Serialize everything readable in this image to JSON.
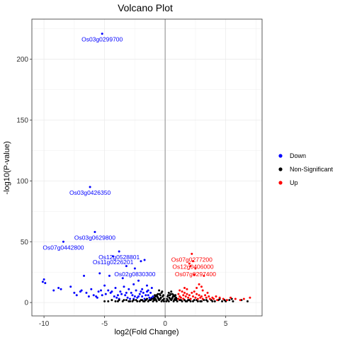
{
  "chart_data": {
    "type": "scatter",
    "title": "Volcano Plot",
    "xlabel": "log2(Fold Change)",
    "ylabel": "-log10(P-value)",
    "xlim": [
      -11,
      8
    ],
    "ylim": [
      -11,
      233
    ],
    "x_ticks": [
      -10,
      -5,
      0,
      5
    ],
    "y_ticks": [
      0,
      50,
      100,
      150,
      200
    ],
    "grid": true,
    "vline": 0,
    "legend_position": "right",
    "colors": {
      "Down": "#0000ff",
      "Non-Significant": "#000000",
      "Up": "#ff0000"
    },
    "series": [
      {
        "name": "Down",
        "color": "#0000ff",
        "points": [
          [
            -5.2,
            221
          ],
          [
            -6.2,
            95
          ],
          [
            -5.8,
            58
          ],
          [
            -8.4,
            50
          ],
          [
            -3.8,
            42
          ],
          [
            -4.3,
            38
          ],
          [
            -1.7,
            35
          ],
          [
            -2.0,
            34
          ],
          [
            -3.2,
            30
          ],
          [
            -2.5,
            28
          ],
          [
            -10.0,
            19
          ],
          [
            -10.1,
            17
          ],
          [
            -9.9,
            16
          ],
          [
            -6.7,
            22
          ],
          [
            -5.4,
            24
          ],
          [
            -4.6,
            22
          ],
          [
            -3.5,
            20
          ],
          [
            -7.8,
            13
          ],
          [
            -8.6,
            11
          ],
          [
            -8.8,
            12
          ],
          [
            -9.2,
            10
          ],
          [
            -7.0,
            9
          ],
          [
            -6.5,
            8
          ],
          [
            -5.9,
            6
          ],
          [
            -5.7,
            5
          ],
          [
            -5.6,
            4
          ],
          [
            -5.2,
            6
          ],
          [
            -4.9,
            7
          ],
          [
            -4.5,
            8
          ],
          [
            -4.2,
            5
          ],
          [
            -4.0,
            4
          ],
          [
            -3.8,
            3
          ],
          [
            -3.6,
            7
          ],
          [
            -3.3,
            6
          ],
          [
            -3.1,
            4
          ],
          [
            -2.9,
            3
          ],
          [
            -2.7,
            6
          ],
          [
            -2.5,
            5
          ],
          [
            -2.3,
            4
          ],
          [
            -2.1,
            7
          ],
          [
            -1.9,
            5
          ],
          [
            -1.7,
            3
          ],
          [
            -1.5,
            9
          ],
          [
            -1.4,
            6
          ],
          [
            -1.3,
            4
          ],
          [
            -1.2,
            3
          ],
          [
            -1.1,
            12
          ],
          [
            -1.0,
            5
          ],
          [
            -1.5,
            14
          ],
          [
            -2.2,
            18
          ],
          [
            -2.6,
            15
          ],
          [
            -3.0,
            11
          ],
          [
            -3.4,
            13
          ],
          [
            -4.1,
            12
          ],
          [
            -4.7,
            10
          ],
          [
            -5.0,
            14
          ],
          [
            -5.5,
            9
          ],
          [
            -6.1,
            11
          ],
          [
            -6.9,
            10
          ],
          [
            -7.5,
            8
          ],
          [
            -7.3,
            6
          ],
          [
            -6.3,
            5
          ],
          [
            -5.3,
            10
          ],
          [
            -4.4,
            9
          ],
          [
            -3.7,
            9
          ],
          [
            -2.8,
            8
          ],
          [
            -2.4,
            10
          ],
          [
            -2.0,
            9
          ],
          [
            -1.8,
            8
          ],
          [
            -1.6,
            6
          ],
          [
            -1.2,
            8
          ],
          [
            -1.1,
            4
          ],
          [
            -3.9,
            6
          ],
          [
            -3.2,
            8
          ],
          [
            -2.6,
            3
          ],
          [
            -2.2,
            5
          ],
          [
            -1.9,
            11
          ],
          [
            -1.4,
            10
          ]
        ]
      },
      {
        "name": "Non-Significant",
        "color": "#000000",
        "points": [
          [
            -0.1,
            1
          ],
          [
            -0.2,
            2
          ],
          [
            -0.3,
            1
          ],
          [
            -0.4,
            3
          ],
          [
            -0.5,
            2
          ],
          [
            -0.6,
            4
          ],
          [
            -0.7,
            1
          ],
          [
            -0.8,
            3
          ],
          [
            -0.9,
            2
          ],
          [
            -1.0,
            1
          ],
          [
            -1.2,
            2
          ],
          [
            -1.4,
            1
          ],
          [
            -1.6,
            2
          ],
          [
            -1.8,
            1
          ],
          [
            -2.0,
            2
          ],
          [
            -2.3,
            1
          ],
          [
            -2.6,
            2
          ],
          [
            -2.9,
            1
          ],
          [
            -3.2,
            2
          ],
          [
            -3.5,
            1
          ],
          [
            -3.8,
            2
          ],
          [
            -4.1,
            1
          ],
          [
            -4.4,
            2
          ],
          [
            -4.7,
            1
          ],
          [
            -5.0,
            1
          ],
          [
            -0.2,
            5
          ],
          [
            -0.4,
            6
          ],
          [
            -0.6,
            7
          ],
          [
            -0.3,
            8
          ],
          [
            -0.5,
            10
          ],
          [
            -0.7,
            6
          ],
          [
            -0.8,
            5
          ],
          [
            -0.9,
            4
          ],
          [
            -0.1,
            3
          ],
          [
            -0.15,
            6
          ],
          [
            -0.25,
            9
          ],
          [
            -0.35,
            4
          ],
          [
            -0.45,
            7
          ],
          [
            -0.55,
            3
          ],
          [
            -0.65,
            5
          ],
          [
            -0.75,
            2
          ],
          [
            -0.85,
            6
          ],
          [
            -0.95,
            3
          ],
          [
            -1.1,
            3
          ],
          [
            -1.3,
            2
          ],
          [
            -1.5,
            3
          ],
          [
            -1.7,
            1
          ],
          [
            -1.9,
            2
          ],
          [
            -2.1,
            1
          ],
          [
            -2.4,
            2
          ],
          [
            -2.7,
            1
          ],
          [
            -3.0,
            1
          ],
          [
            -3.4,
            2
          ],
          [
            -3.9,
            1
          ],
          [
            0.1,
            1
          ],
          [
            0.2,
            2
          ],
          [
            0.3,
            1
          ],
          [
            0.4,
            3
          ],
          [
            0.5,
            2
          ],
          [
            0.6,
            4
          ],
          [
            0.7,
            1
          ],
          [
            0.8,
            3
          ],
          [
            0.9,
            2
          ],
          [
            1.0,
            1
          ],
          [
            1.2,
            2
          ],
          [
            1.4,
            1
          ],
          [
            1.6,
            2
          ],
          [
            1.8,
            1
          ],
          [
            2.0,
            2
          ],
          [
            2.3,
            1
          ],
          [
            2.6,
            2
          ],
          [
            2.9,
            1
          ],
          [
            3.2,
            2
          ],
          [
            3.5,
            1
          ],
          [
            3.8,
            2
          ],
          [
            4.1,
            1
          ],
          [
            4.4,
            2
          ],
          [
            4.7,
            1
          ],
          [
            5.0,
            1
          ],
          [
            5.3,
            2
          ],
          [
            5.6,
            1
          ],
          [
            0.2,
            5
          ],
          [
            0.4,
            6
          ],
          [
            0.6,
            7
          ],
          [
            0.3,
            8
          ],
          [
            0.5,
            9
          ],
          [
            0.7,
            6
          ],
          [
            0.8,
            5
          ],
          [
            0.9,
            4
          ],
          [
            0.15,
            3
          ],
          [
            0.25,
            6
          ],
          [
            0.35,
            4
          ],
          [
            0.45,
            7
          ],
          [
            0.55,
            3
          ],
          [
            0.65,
            5
          ],
          [
            0.75,
            2
          ],
          [
            0.85,
            6
          ],
          [
            0.95,
            3
          ],
          [
            1.1,
            3
          ],
          [
            1.3,
            2
          ],
          [
            1.5,
            3
          ],
          [
            1.7,
            1
          ],
          [
            1.9,
            2
          ],
          [
            2.1,
            1
          ],
          [
            2.4,
            2
          ],
          [
            2.7,
            1
          ],
          [
            3.0,
            1
          ],
          [
            3.4,
            2
          ],
          [
            3.9,
            1
          ],
          [
            4.5,
            3
          ],
          [
            5.5,
            3
          ],
          [
            6.3,
            2
          ],
          [
            6.8,
            1
          ],
          [
            4.9,
            2
          ]
        ]
      },
      {
        "name": "Up",
        "color": "#ff0000",
        "points": [
          [
            2.2,
            40
          ],
          [
            2.3,
            34
          ],
          [
            2.0,
            32
          ],
          [
            2.1,
            30
          ],
          [
            2.5,
            28
          ],
          [
            2.4,
            23
          ],
          [
            3.2,
            22
          ],
          [
            2.8,
            15
          ],
          [
            3.0,
            13
          ],
          [
            3.1,
            10
          ],
          [
            1.2,
            10
          ],
          [
            1.4,
            9
          ],
          [
            1.1,
            7
          ],
          [
            1.5,
            6
          ],
          [
            1.6,
            8
          ],
          [
            1.8,
            7
          ],
          [
            2.0,
            6
          ],
          [
            2.2,
            8
          ],
          [
            2.4,
            9
          ],
          [
            2.6,
            7
          ],
          [
            2.8,
            6
          ],
          [
            3.0,
            5
          ],
          [
            3.3,
            6
          ],
          [
            3.6,
            5
          ],
          [
            3.9,
            4
          ],
          [
            4.2,
            5
          ],
          [
            4.5,
            4
          ],
          [
            1.3,
            4
          ],
          [
            1.5,
            3
          ],
          [
            1.7,
            5
          ],
          [
            1.9,
            4
          ],
          [
            2.1,
            3
          ],
          [
            2.3,
            5
          ],
          [
            2.5,
            4
          ],
          [
            2.7,
            3
          ],
          [
            2.9,
            4
          ],
          [
            3.1,
            3
          ],
          [
            3.4,
            4
          ],
          [
            3.7,
            3
          ],
          [
            4.0,
            3
          ],
          [
            4.3,
            2
          ],
          [
            4.8,
            3
          ],
          [
            5.1,
            2
          ],
          [
            5.4,
            4
          ],
          [
            5.8,
            3
          ],
          [
            6.2,
            2
          ],
          [
            6.5,
            3
          ],
          [
            7.0,
            4
          ],
          [
            1.8,
            11
          ],
          [
            2.6,
            12
          ],
          [
            1.6,
            12
          ],
          [
            3.5,
            8
          ],
          [
            1.2,
            5
          ],
          [
            1.1,
            3
          ]
        ]
      }
    ],
    "annotations": [
      {
        "label": "Os03g0299700",
        "series": "Down",
        "x": -5.2,
        "y": 221
      },
      {
        "label": "Os03g0426350",
        "series": "Down",
        "x": -6.2,
        "y": 95
      },
      {
        "label": "Os03g0629800",
        "series": "Down",
        "x": -5.8,
        "y": 58
      },
      {
        "label": "Os07g0442800",
        "series": "Down",
        "x": -8.4,
        "y": 50
      },
      {
        "label": "Os12g0528801",
        "series": "Down",
        "x": -3.8,
        "y": 42
      },
      {
        "label": "Os11g0226201",
        "series": "Down",
        "x": -4.3,
        "y": 38
      },
      {
        "label": "Os02g0830300",
        "series": "Down",
        "x": -2.5,
        "y": 28
      },
      {
        "label": "Os07g0277200",
        "series": "Up",
        "x": 2.2,
        "y": 40
      },
      {
        "label": "Os12g0406000",
        "series": "Up",
        "x": 2.3,
        "y": 34
      },
      {
        "label": "Os07g0297400",
        "series": "Up",
        "x": 2.5,
        "y": 28
      }
    ]
  }
}
